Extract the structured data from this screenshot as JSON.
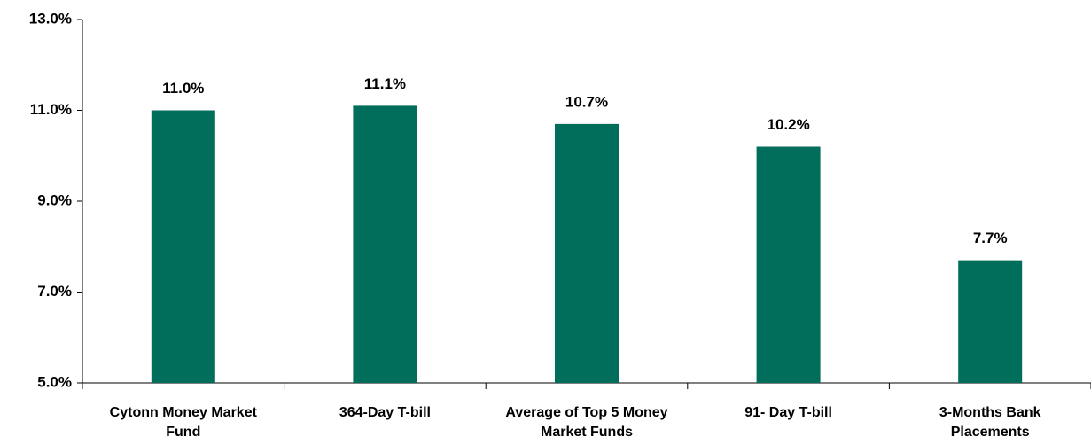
{
  "chart_data": {
    "type": "bar",
    "categories": [
      "Cytonn Money Market Fund",
      "364-Day T-bill",
      "Average of Top 5 Money Market Funds",
      "91- Day T-bill",
      "3-Months Bank Placements"
    ],
    "values": [
      11.0,
      11.1,
      10.7,
      10.2,
      7.7
    ],
    "value_labels": [
      "11.0%",
      "11.1%",
      "10.7%",
      "10.2%",
      "7.7%"
    ],
    "color": "#006e5b",
    "ylim": [
      5,
      13
    ],
    "yticks": [
      {
        "value": 5,
        "label": "5.0%"
      },
      {
        "value": 7,
        "label": "7.0%"
      },
      {
        "value": 9,
        "label": "9.0%"
      },
      {
        "value": 11,
        "label": "11.0%"
      },
      {
        "value": 13,
        "label": "13.0%"
      }
    ],
    "grid": false
  }
}
